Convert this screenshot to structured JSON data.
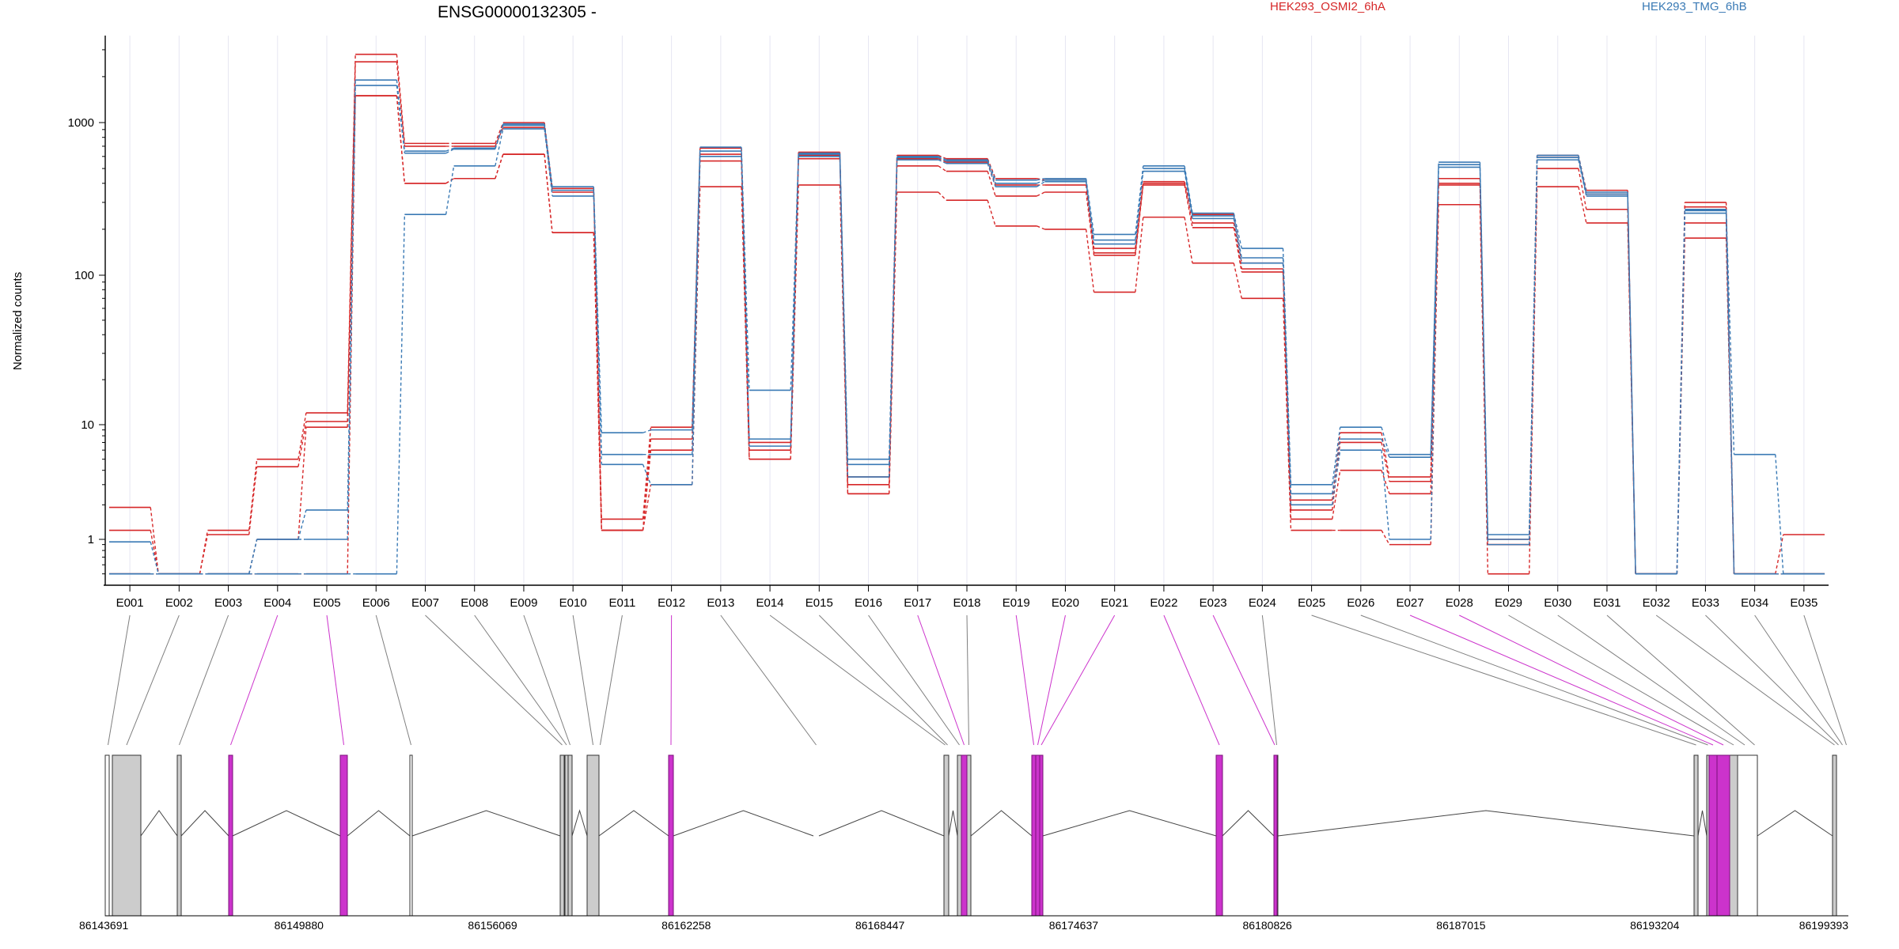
{
  "chart_data": {
    "type": "line",
    "title": "ENSG00000132305 -",
    "ylabel": "Normalized counts",
    "y_scale": "log",
    "y_ticks": [
      {
        "value": 1,
        "label": "1"
      },
      {
        "value": 10,
        "label": "10"
      },
      {
        "value": 100,
        "label": "100"
      },
      {
        "value": 1000,
        "label": "1000"
      }
    ],
    "categories": [
      "E001",
      "E002",
      "E003",
      "E004",
      "E005",
      "E006",
      "E007",
      "E008",
      "E009",
      "E010",
      "E011",
      "E012",
      "E013",
      "E014",
      "E015",
      "E016",
      "E017",
      "E018",
      "E019",
      "E020",
      "E021",
      "E022",
      "E023",
      "E024",
      "E025",
      "E026",
      "E027",
      "E028",
      "E029",
      "E030",
      "E031",
      "E032",
      "E033",
      "E034",
      "E035"
    ],
    "legend": [
      {
        "label": "HEK293_OSMI2_6hA",
        "color": "#d62728"
      },
      {
        "label": "HEK293_TMG_6hB",
        "color": "#3a7ab5"
      }
    ],
    "series": [
      {
        "group": "HEK293_OSMI2_6hA",
        "color": "#d62728",
        "values": [
          1.9,
          0.5,
          1.2,
          5,
          12,
          2800,
          730,
          730,
          1000,
          370,
          1.5,
          9.5,
          680,
          7,
          640,
          3.5,
          610,
          580,
          430,
          420,
          150,
          410,
          250,
          120,
          2.2,
          8.5,
          3.5,
          430,
          1,
          610,
          360,
          0.5,
          300,
          0.5,
          0.5
        ]
      },
      {
        "group": "HEK293_OSMI2_6hA",
        "color": "#d62728",
        "values": [
          1.2,
          0.5,
          1.1,
          4.3,
          10.5,
          2500,
          700,
          700,
          930,
          350,
          1.2,
          7.5,
          620,
          6,
          610,
          3,
          580,
          550,
          390,
          390,
          140,
          400,
          220,
          110,
          1.8,
          7,
          3.2,
          390,
          0.9,
          590,
          340,
          0.5,
          280,
          0.5,
          0.5
        ]
      },
      {
        "group": "HEK293_OSMI2_6hA",
        "color": "#d62728",
        "values": [
          0.5,
          0.5,
          0.5,
          1,
          9.5,
          1500,
          400,
          430,
          620,
          190,
          1.2,
          6,
          560,
          5,
          580,
          2.5,
          520,
          480,
          330,
          350,
          135,
          390,
          205,
          105,
          1.5,
          4,
          2.5,
          400,
          0.9,
          500,
          270,
          0.5,
          220,
          0.5,
          1.1
        ]
      },
      {
        "group": "HEK293_OSMI2_6hA",
        "color": "#d62728",
        "values": [
          0.5,
          0.5,
          0.5,
          0.5,
          0.5,
          1500,
          400,
          430,
          620,
          190,
          1.2,
          3,
          380,
          5,
          390,
          2.5,
          350,
          310,
          210,
          200,
          77,
          240,
          120,
          70,
          1.2,
          1.2,
          0.9,
          290,
          0.5,
          380,
          220,
          0.5,
          175,
          0.5,
          0.5
        ]
      },
      {
        "group": "HEK293_TMG_6hB",
        "color": "#3a7ab5",
        "values": [
          0.95,
          0.5,
          0.5,
          1,
          1.8,
          1900,
          650,
          680,
          980,
          380,
          8.5,
          9,
          690,
          17,
          630,
          5,
          600,
          570,
          420,
          430,
          185,
          520,
          255,
          150,
          3,
          9.5,
          5.5,
          550,
          1.1,
          610,
          350,
          0.5,
          270,
          5.5,
          0.5
        ]
      },
      {
        "group": "HEK293_TMG_6hB",
        "color": "#3a7ab5",
        "values": [
          0.5,
          0.5,
          0.5,
          1,
          1,
          1750,
          630,
          670,
          960,
          360,
          5.5,
          5.5,
          650,
          7.5,
          620,
          4.5,
          590,
          560,
          400,
          420,
          170,
          500,
          245,
          130,
          2.5,
          7.5,
          5.2,
          530,
          1,
          590,
          340,
          0.5,
          265,
          0.5,
          0.5
        ]
      },
      {
        "group": "HEK293_TMG_6hB",
        "color": "#3a7ab5",
        "values": [
          0.5,
          0.5,
          0.5,
          0.5,
          0.5,
          0.5,
          250,
          520,
          910,
          330,
          4.5,
          3,
          600,
          6.5,
          600,
          3.5,
          570,
          540,
          380,
          410,
          160,
          480,
          235,
          120,
          2,
          6,
          1,
          510,
          0.9,
          570,
          330,
          0.5,
          255,
          0.5,
          0.5
        ]
      }
    ],
    "gene_model": {
      "coordinate_labels": [
        "86143691",
        "86149880",
        "86156069",
        "86162258",
        "86168447",
        "86174637",
        "86180826",
        "86187015",
        "86193204",
        "86199393"
      ],
      "exon_bins": [
        "E001",
        "E002",
        "E003",
        "E004",
        "E005",
        "E006",
        "E007",
        "E008",
        "E009",
        "E010",
        "E011",
        "E012",
        "E013",
        "E014",
        "E015",
        "E016",
        "E017",
        "E018",
        "E019",
        "E020",
        "E021",
        "E022",
        "E023",
        "E024",
        "E025",
        "E026",
        "E027",
        "E028",
        "E029",
        "E030",
        "E031",
        "E032",
        "E033",
        "E034",
        "E035"
      ],
      "significant_bins": [
        "E004",
        "E005",
        "E012",
        "E017",
        "E019",
        "E020",
        "E021",
        "E022",
        "E023",
        "E027",
        "E028"
      ],
      "colors": {
        "significant": "#cc33cc",
        "normal_fill": "#cccccc",
        "line": "#7f7f7f"
      }
    }
  }
}
